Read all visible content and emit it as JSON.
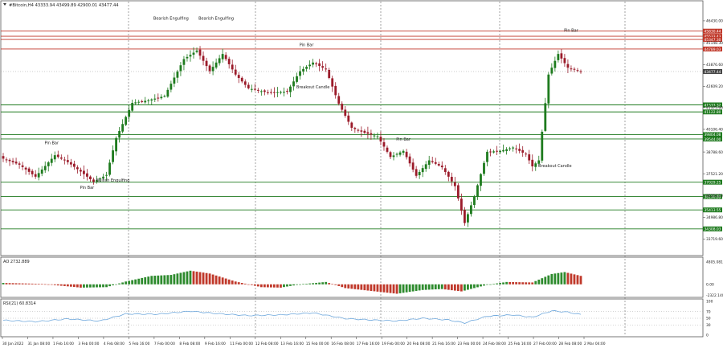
{
  "chart_data": {
    "type": "candlestick",
    "symbol_title": "#Bitcoin,H4  43333.94 43499.89 42900.01 43477.44",
    "colors": {
      "up": "#1e7b1e",
      "down": "#9b1b2a",
      "resistance": "#c0392b",
      "support": "#1f7a1f",
      "ao_up": "#2e8b2e",
      "ao_down": "#c0392b",
      "rsi": "#6fa8dc",
      "price_tag": "#444444"
    },
    "main": {
      "ylim": [
        32800,
        47550
      ],
      "tick_labels": [
        "46430.00",
        "45148.30",
        "43876.60",
        "42609.20",
        "41375.60",
        "40106.40",
        "38788.60",
        "37521.20",
        "36254.10",
        "34986.80",
        "33719.60"
      ],
      "price_tag": "43477.44"
    },
    "levels": [
      {
        "value": 45830.44,
        "label": "45830.44",
        "kind": "res"
      },
      {
        "value": 45533.43,
        "label": "45533.43",
        "kind": "res"
      },
      {
        "value": 45347.3,
        "label": "45347.30",
        "kind": "res"
      },
      {
        "value": 44789.03,
        "label": "44789.03",
        "kind": "res"
      },
      {
        "value": 41533.32,
        "label": "41533.32",
        "kind": "sup"
      },
      {
        "value": 41122.8,
        "label": "41122.80",
        "kind": "sup"
      },
      {
        "value": 39804.08,
        "label": "39804.08",
        "kind": "sup"
      },
      {
        "value": 39544.0,
        "label": "39544.00",
        "kind": "sup"
      },
      {
        "value": 37029.25,
        "label": "37029.25",
        "kind": "sup"
      },
      {
        "value": 36190.89,
        "label": "36190.89",
        "kind": "sup"
      },
      {
        "value": 35413.55,
        "label": "35413.55",
        "kind": "sup"
      },
      {
        "value": 34308.03,
        "label": "34308.03",
        "kind": "sup"
      }
    ],
    "anchors": [
      {
        "i": 0,
        "v": 38400
      },
      {
        "i": 5,
        "v": 38050
      },
      {
        "i": 10,
        "v": 37350
      },
      {
        "i": 16,
        "v": 38600
      },
      {
        "i": 20,
        "v": 38200
      },
      {
        "i": 24,
        "v": 37650
      },
      {
        "i": 28,
        "v": 37050
      },
      {
        "i": 32,
        "v": 37450
      },
      {
        "i": 35,
        "v": 39600
      },
      {
        "i": 40,
        "v": 41650
      },
      {
        "i": 45,
        "v": 41800
      },
      {
        "i": 50,
        "v": 42050
      },
      {
        "i": 56,
        "v": 44200
      },
      {
        "i": 60,
        "v": 44700
      },
      {
        "i": 64,
        "v": 43500
      },
      {
        "i": 68,
        "v": 44500
      },
      {
        "i": 72,
        "v": 43300
      },
      {
        "i": 76,
        "v": 42500
      },
      {
        "i": 82,
        "v": 42250
      },
      {
        "i": 88,
        "v": 42300
      },
      {
        "i": 92,
        "v": 43500
      },
      {
        "i": 96,
        "v": 44000
      },
      {
        "i": 100,
        "v": 43600
      },
      {
        "i": 104,
        "v": 41600
      },
      {
        "i": 108,
        "v": 40200
      },
      {
        "i": 112,
        "v": 39900
      },
      {
        "i": 116,
        "v": 39700
      },
      {
        "i": 120,
        "v": 38500
      },
      {
        "i": 124,
        "v": 38850
      },
      {
        "i": 128,
        "v": 37400
      },
      {
        "i": 132,
        "v": 38300
      },
      {
        "i": 136,
        "v": 37900
      },
      {
        "i": 140,
        "v": 36800
      },
      {
        "i": 143,
        "v": 34650
      },
      {
        "i": 146,
        "v": 36200
      },
      {
        "i": 150,
        "v": 38800
      },
      {
        "i": 154,
        "v": 38850
      },
      {
        "i": 158,
        "v": 39050
      },
      {
        "i": 162,
        "v": 38650
      },
      {
        "i": 164,
        "v": 37950
      },
      {
        "i": 166,
        "v": 38300
      },
      {
        "i": 169,
        "v": 43300
      },
      {
        "i": 172,
        "v": 44500
      },
      {
        "i": 175,
        "v": 43700
      },
      {
        "i": 179,
        "v": 43477
      }
    ],
    "ao": {
      "title": "AO 2732.889",
      "ylim": [
        -2600,
        5600
      ],
      "tick_labels": [
        "4805.081",
        "0.00",
        "-2322.140"
      ],
      "anchors": [
        {
          "i": 0,
          "v": 300
        },
        {
          "i": 12,
          "v": 100
        },
        {
          "i": 24,
          "v": -700
        },
        {
          "i": 32,
          "v": -600
        },
        {
          "i": 38,
          "v": 600
        },
        {
          "i": 46,
          "v": 1800
        },
        {
          "i": 52,
          "v": 2000
        },
        {
          "i": 58,
          "v": 2900
        },
        {
          "i": 64,
          "v": 2300
        },
        {
          "i": 72,
          "v": 600
        },
        {
          "i": 80,
          "v": -600
        },
        {
          "i": 86,
          "v": -700
        },
        {
          "i": 92,
          "v": 0
        },
        {
          "i": 100,
          "v": 500
        },
        {
          "i": 106,
          "v": -800
        },
        {
          "i": 114,
          "v": -1400
        },
        {
          "i": 122,
          "v": -2000
        },
        {
          "i": 130,
          "v": -1200
        },
        {
          "i": 136,
          "v": -1000
        },
        {
          "i": 142,
          "v": -1500
        },
        {
          "i": 150,
          "v": -100
        },
        {
          "i": 156,
          "v": 500
        },
        {
          "i": 164,
          "v": 400
        },
        {
          "i": 170,
          "v": 2200
        },
        {
          "i": 174,
          "v": 2600
        },
        {
          "i": 179,
          "v": 1800
        }
      ]
    },
    "rsi": {
      "title": "RSI(21) 60.8314",
      "ylim": [
        0,
        100
      ],
      "levels": [
        70,
        50,
        30
      ],
      "tick_labels": [
        "100",
        "70",
        "50",
        "30",
        "0"
      ],
      "anchors": [
        {
          "i": 0,
          "v": 44
        },
        {
          "i": 10,
          "v": 40
        },
        {
          "i": 20,
          "v": 48
        },
        {
          "i": 30,
          "v": 42
        },
        {
          "i": 38,
          "v": 63
        },
        {
          "i": 48,
          "v": 62
        },
        {
          "i": 58,
          "v": 71
        },
        {
          "i": 66,
          "v": 64
        },
        {
          "i": 76,
          "v": 58
        },
        {
          "i": 86,
          "v": 60
        },
        {
          "i": 96,
          "v": 66
        },
        {
          "i": 106,
          "v": 49
        },
        {
          "i": 114,
          "v": 45
        },
        {
          "i": 122,
          "v": 42
        },
        {
          "i": 130,
          "v": 50
        },
        {
          "i": 138,
          "v": 45
        },
        {
          "i": 143,
          "v": 36
        },
        {
          "i": 150,
          "v": 56
        },
        {
          "i": 158,
          "v": 60
        },
        {
          "i": 164,
          "v": 53
        },
        {
          "i": 170,
          "v": 72
        },
        {
          "i": 175,
          "v": 68
        },
        {
          "i": 179,
          "v": 61
        }
      ]
    },
    "x_tick_labels": [
      "30 Jan 2022",
      "31 Jan 08:00",
      "1 Feb 16:00",
      "3 Feb 00:00",
      "4 Feb 08:00",
      "5 Feb 16:00",
      "7 Feb 00:00",
      "8 Feb 08:00",
      "9 Feb 16:00",
      "11 Feb 00:00",
      "12 Feb 08:00",
      "13 Feb 16:00",
      "15 Feb 00:00",
      "16 Feb 08:00",
      "17 Feb 16:00",
      "19 Feb 00:00",
      "20 Feb 08:00",
      "21 Feb 16:00",
      "23 Feb 00:00",
      "24 Feb 08:00",
      "25 Feb 16:00",
      "27 Feb 00:00",
      "28 Feb 08:00",
      "2 Mar 04:00"
    ],
    "annotations": [
      {
        "text": "Bearish Engulfing",
        "i": 52,
        "v": 46500
      },
      {
        "text": "Bearish Engulfing",
        "i": 66,
        "v": 46500
      },
      {
        "text": "Pin Bar",
        "i": 94,
        "v": 44950
      },
      {
        "text": "Pin Bar",
        "i": 176,
        "v": 45800
      },
      {
        "text": "Breakout Candle",
        "i": 96,
        "v": 42500
      },
      {
        "text": "Pin Bar",
        "i": 15,
        "v": 39250
      },
      {
        "text": "Pin Bar",
        "i": 124,
        "v": 39450
      },
      {
        "text": "Bullish Engulfing",
        "i": 34,
        "v": 37050
      },
      {
        "text": "Pin Bar",
        "i": 26,
        "v": 36650
      },
      {
        "text": "Breakout Candle",
        "i": 171,
        "v": 37900
      }
    ]
  }
}
